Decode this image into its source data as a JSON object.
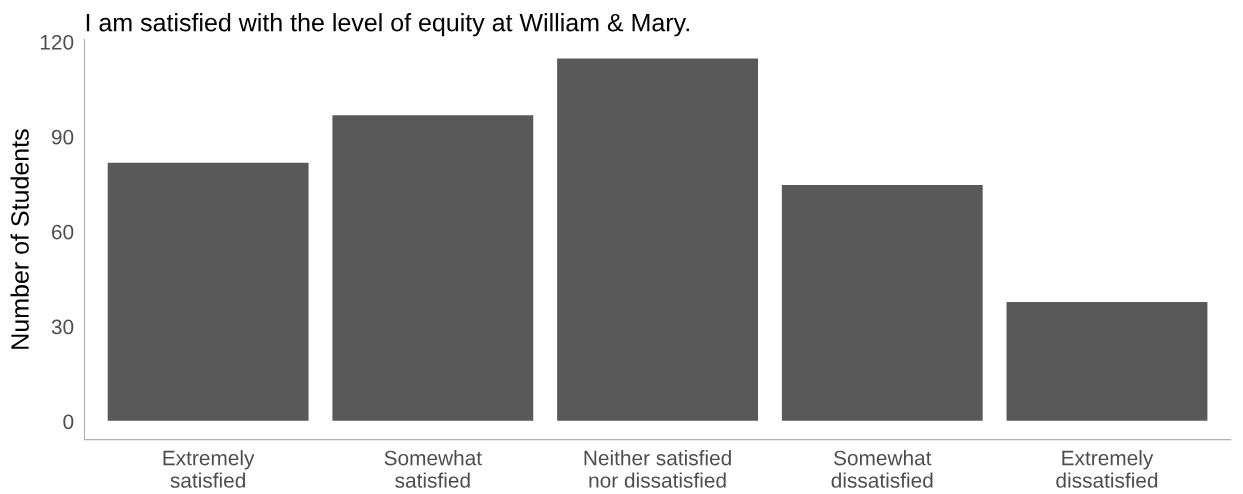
{
  "chart_data": {
    "type": "bar",
    "title": "I am satisfied with the level of equity at William & Mary.",
    "ylabel": "Number of Students",
    "categories": [
      "Extremely\nsatisfied",
      "Somewhat\nsatisfied",
      "Neither satisfied\nnor dissatisfied",
      "Somewhat\ndissatisfied",
      "Extremely\ndissatisfied"
    ],
    "values": [
      82,
      97,
      115,
      75,
      38
    ],
    "color": "#595959",
    "ylim": [
      -5.75,
      120.75
    ],
    "yticks": [
      0,
      30,
      60,
      90,
      120
    ],
    "grid": false
  }
}
